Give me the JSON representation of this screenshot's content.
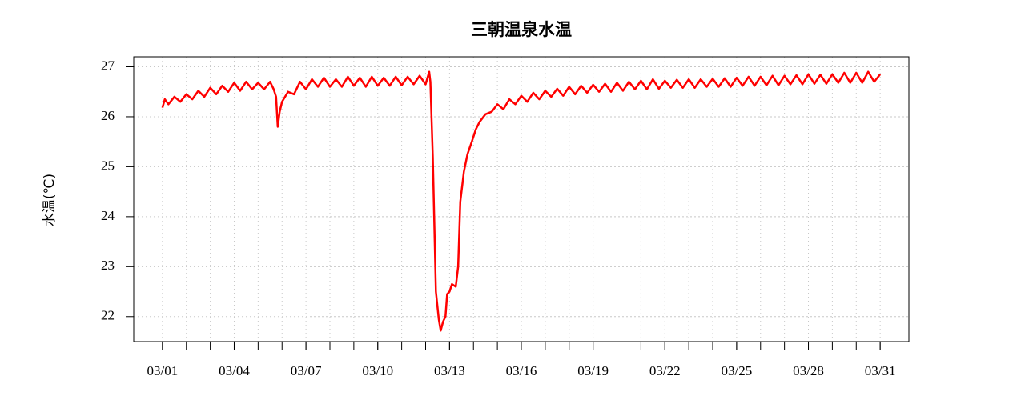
{
  "chart_data": {
    "type": "line",
    "title": "三朝温泉水温",
    "y_label": "水温(℃)",
    "color": "#ff0000",
    "grid": true,
    "x": [
      1.0,
      1.1,
      1.25,
      1.5,
      1.75,
      2.0,
      2.25,
      2.5,
      2.75,
      3.0,
      3.25,
      3.5,
      3.75,
      4.0,
      4.25,
      4.5,
      4.75,
      5.0,
      5.25,
      5.5,
      5.65,
      5.75,
      5.82,
      5.9,
      6.0,
      6.25,
      6.5,
      6.75,
      7.0,
      7.25,
      7.5,
      7.75,
      8.0,
      8.25,
      8.5,
      8.75,
      9.0,
      9.25,
      9.5,
      9.75,
      10.0,
      10.25,
      10.5,
      10.75,
      11.0,
      11.25,
      11.5,
      11.75,
      12.0,
      12.15,
      12.2,
      12.3,
      12.43,
      12.55,
      12.63,
      12.73,
      12.83,
      12.9,
      13.0,
      13.1,
      13.26,
      13.36,
      13.45,
      13.6,
      13.75,
      13.93,
      14.1,
      14.26,
      14.5,
      14.76,
      15.0,
      15.25,
      15.5,
      15.75,
      16.0,
      16.25,
      16.5,
      16.75,
      17.0,
      17.25,
      17.5,
      17.75,
      18.0,
      18.25,
      18.5,
      18.75,
      19.0,
      19.25,
      19.5,
      19.75,
      20.0,
      20.25,
      20.5,
      20.75,
      21.0,
      21.25,
      21.5,
      21.75,
      22.0,
      22.25,
      22.5,
      22.75,
      23.0,
      23.25,
      23.5,
      23.75,
      24.0,
      24.25,
      24.5,
      24.75,
      25.0,
      25.25,
      25.5,
      25.75,
      26.0,
      26.25,
      26.5,
      26.75,
      27.0,
      27.25,
      27.5,
      27.75,
      28.0,
      28.25,
      28.5,
      28.75,
      29.0,
      29.25,
      29.5,
      29.75,
      30.0,
      30.25,
      30.5,
      30.75,
      31.0
    ],
    "values": [
      26.18,
      26.35,
      26.25,
      26.4,
      26.3,
      26.45,
      26.35,
      26.52,
      26.4,
      26.58,
      26.45,
      26.62,
      26.5,
      26.68,
      26.52,
      26.7,
      26.55,
      26.68,
      26.55,
      26.7,
      26.55,
      26.4,
      25.8,
      26.1,
      26.3,
      26.5,
      26.45,
      26.7,
      26.55,
      26.75,
      26.6,
      26.78,
      26.6,
      26.75,
      26.6,
      26.8,
      26.62,
      26.78,
      26.6,
      26.8,
      26.62,
      26.78,
      26.62,
      26.8,
      26.63,
      26.8,
      26.65,
      26.82,
      26.65,
      26.9,
      26.7,
      25.2,
      22.5,
      21.95,
      21.72,
      21.9,
      22.0,
      22.45,
      22.5,
      22.65,
      22.6,
      23.0,
      24.3,
      24.9,
      25.25,
      25.5,
      25.75,
      25.9,
      26.05,
      26.1,
      26.25,
      26.15,
      26.35,
      26.25,
      26.42,
      26.3,
      26.48,
      26.35,
      26.52,
      26.4,
      26.56,
      26.42,
      26.6,
      26.45,
      26.62,
      26.48,
      26.64,
      26.5,
      26.66,
      26.5,
      26.68,
      26.52,
      26.7,
      26.55,
      26.72,
      26.55,
      26.75,
      26.56,
      26.72,
      26.58,
      26.74,
      26.58,
      26.75,
      26.58,
      26.75,
      26.6,
      26.76,
      26.6,
      26.77,
      26.6,
      26.78,
      26.62,
      26.8,
      26.62,
      26.8,
      26.63,
      26.82,
      26.63,
      26.82,
      26.65,
      26.83,
      26.65,
      26.85,
      26.66,
      26.84,
      26.66,
      26.85,
      26.68,
      26.88,
      26.68,
      26.88,
      26.68,
      26.9,
      26.7,
      26.85
    ],
    "xlim": [
      -0.2,
      32.2
    ],
    "ylim": [
      21.5,
      27.2
    ],
    "xticks": [
      {
        "value": 1,
        "label": "03/01"
      },
      {
        "value": 4,
        "label": "03/04"
      },
      {
        "value": 7,
        "label": "03/07"
      },
      {
        "value": 10,
        "label": "03/10"
      },
      {
        "value": 13,
        "label": "03/13"
      },
      {
        "value": 16,
        "label": "03/16"
      },
      {
        "value": 19,
        "label": "03/19"
      },
      {
        "value": 22,
        "label": "03/22"
      },
      {
        "value": 25,
        "label": "03/25"
      },
      {
        "value": 28,
        "label": "03/28"
      },
      {
        "value": 31,
        "label": "03/31"
      }
    ],
    "yticks": [
      22,
      23,
      24,
      25,
      26,
      27
    ]
  }
}
